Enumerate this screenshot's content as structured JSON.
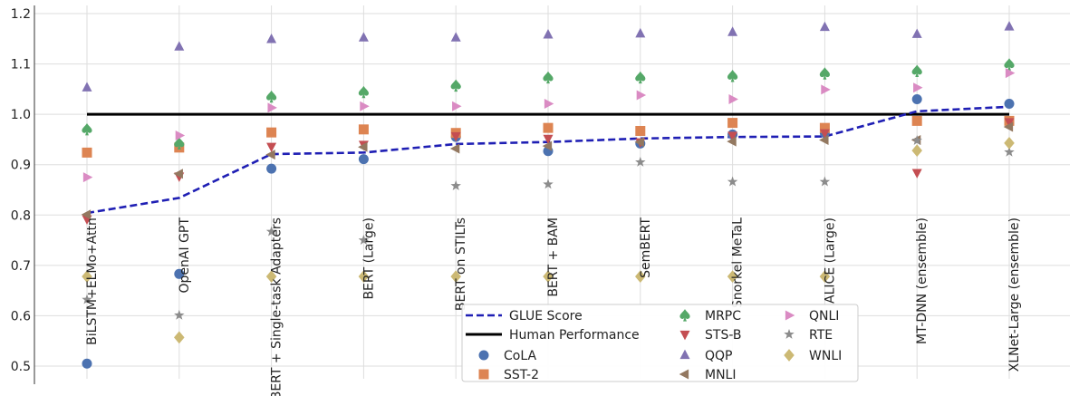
{
  "chart_data": {
    "type": "scatter",
    "title": "",
    "xlabel": "",
    "ylabel": "",
    "ylim": [
      0.48,
      1.22
    ],
    "yticks": [
      0.5,
      0.6,
      0.7,
      0.8,
      0.9,
      1.0,
      1.1,
      1.2
    ],
    "ytick_labels": [
      "0.5",
      "0.6",
      "0.7",
      "0.8",
      "0.9",
      "1.0",
      "1.1",
      "1.2"
    ],
    "grid": true,
    "legend_position": "bottom-center",
    "categories": [
      "BiLSTM+ELMo+Attn",
      "OpenAI GPT",
      "BERT + Single-task Adapters",
      "BERT (Large)",
      "BERT on STILTs",
      "BERT + BAM",
      "SemBERT",
      "Snorkel MeTaL",
      "ALICE (Large)",
      "MT-DNN (ensemble)",
      "XLNet-Large (ensemble)"
    ],
    "glue_score": {
      "name": "GLUE Score",
      "color": "#1f1fb4",
      "values": [
        0.804,
        0.834,
        0.921,
        0.924,
        0.941,
        0.945,
        0.952,
        0.955,
        0.956,
        1.006,
        1.015
      ]
    },
    "human_performance": {
      "name": "Human Performance",
      "color": "#000000",
      "value": 1.0
    },
    "series": [
      {
        "name": "CoLA",
        "marker": "circle",
        "color": "#4c72b0",
        "values": [
          0.505,
          0.683,
          0.892,
          0.911,
          0.955,
          0.927,
          0.942,
          0.96,
          0.963,
          1.03,
          1.021
        ]
      },
      {
        "name": "SST-2",
        "marker": "square",
        "color": "#dd8452",
        "values": [
          0.924,
          0.934,
          0.964,
          0.97,
          0.963,
          0.973,
          0.967,
          0.983,
          0.973,
          0.987,
          0.987
        ]
      },
      {
        "name": "MRPC",
        "marker": "spade",
        "color": "#55a868",
        "values": [
          0.97,
          0.942,
          1.035,
          1.044,
          1.057,
          1.073,
          1.073,
          1.076,
          1.081,
          1.086,
          1.099
        ]
      },
      {
        "name": "STS-B",
        "marker": "triangle-down",
        "color": "#c44e52",
        "values": [
          0.792,
          0.877,
          0.936,
          0.94,
          0.957,
          0.952,
          0.945,
          0.958,
          0.963,
          0.884,
          0.985
        ]
      },
      {
        "name": "QQP",
        "marker": "triangle-up",
        "color": "#8172b2",
        "values": [
          1.053,
          1.134,
          1.149,
          1.152,
          1.152,
          1.158,
          1.16,
          1.163,
          1.173,
          1.159,
          1.174
        ]
      },
      {
        "name": "MNLI",
        "marker": "triangle-left",
        "color": "#937860",
        "values": [
          0.801,
          0.882,
          0.92,
          0.935,
          0.932,
          0.937,
          0.945,
          0.946,
          0.949,
          0.949,
          0.975
        ]
      },
      {
        "name": "QNLI",
        "marker": "triangle-right",
        "color": "#da8bc3",
        "values": [
          0.875,
          0.958,
          1.013,
          1.016,
          1.016,
          1.021,
          1.038,
          1.03,
          1.049,
          1.053,
          1.082
        ]
      },
      {
        "name": "RTE",
        "marker": "star",
        "color": "#8c8c8c",
        "values": [
          0.632,
          0.601,
          0.767,
          0.75,
          0.858,
          0.861,
          0.905,
          0.866,
          0.866,
          0.948,
          0.925
        ]
      },
      {
        "name": "WNLI",
        "marker": "diamond",
        "color": "#ccb974",
        "values": [
          0.678,
          0.557,
          0.678,
          0.678,
          0.678,
          0.678,
          0.678,
          0.678,
          0.678,
          0.928,
          0.943
        ]
      }
    ]
  }
}
